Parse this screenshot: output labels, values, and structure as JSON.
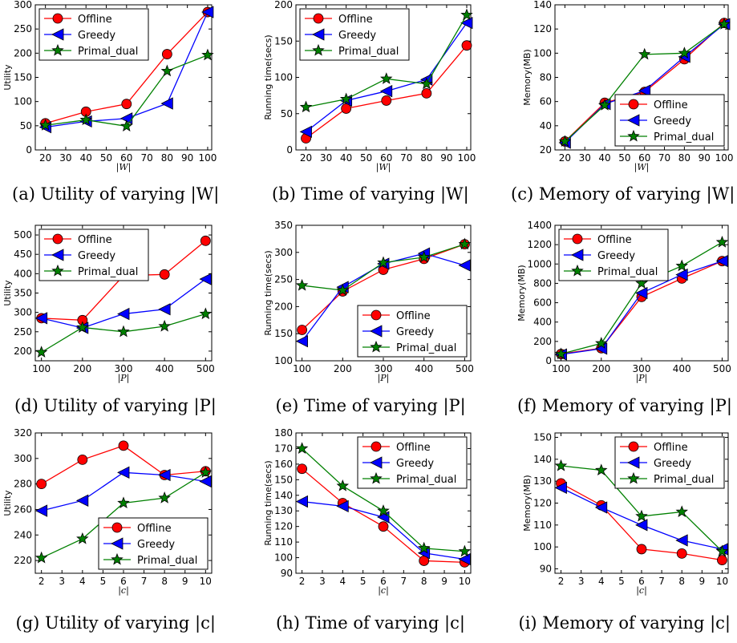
{
  "colors": {
    "offline": "#ff0000",
    "greedy": "#0000ff",
    "primal_dual": "#008000"
  },
  "chart_data": [
    {
      "type": "line",
      "caption": "(a) Utility of varying |W|",
      "xlabel": "|W|",
      "ylabel": "Utility",
      "xlim": [
        15,
        102
      ],
      "ylim": [
        0,
        300
      ],
      "xticks": [
        20,
        30,
        40,
        50,
        60,
        70,
        80,
        90,
        100
      ],
      "yticks": [
        0,
        50,
        100,
        150,
        200,
        250,
        300
      ],
      "legend": "top-left",
      "x": [
        20,
        40,
        60,
        80,
        100
      ],
      "series": [
        {
          "name": "Offline",
          "values": [
            55,
            79,
            95,
            198,
            285
          ]
        },
        {
          "name": "Greedy",
          "values": [
            47,
            59,
            65,
            96,
            285
          ]
        },
        {
          "name": "Primal_dual",
          "values": [
            51,
            62,
            49,
            163,
            196
          ]
        }
      ]
    },
    {
      "type": "line",
      "caption": "(b) Time of varying |W|",
      "xlabel": "|W|",
      "ylabel": "Running time(secs)",
      "xlim": [
        15,
        102
      ],
      "ylim": [
        0,
        200
      ],
      "xticks": [
        20,
        30,
        40,
        50,
        60,
        70,
        80,
        90,
        100
      ],
      "yticks": [
        0,
        50,
        100,
        150,
        200
      ],
      "legend": "top-left",
      "x": [
        20,
        40,
        60,
        80,
        100
      ],
      "series": [
        {
          "name": "Offline",
          "values": [
            16,
            57,
            68,
            78,
            144
          ]
        },
        {
          "name": "Greedy",
          "values": [
            25,
            68,
            81,
            97,
            175
          ]
        },
        {
          "name": "Primal_dual",
          "values": [
            59,
            70,
            98,
            91,
            186
          ]
        }
      ]
    },
    {
      "type": "line",
      "caption": "(c) Memory of varying |W|",
      "xlabel": "|W|",
      "ylabel": "Memory(MB)",
      "xlim": [
        15,
        102
      ],
      "ylim": [
        20,
        140
      ],
      "xticks": [
        20,
        30,
        40,
        50,
        60,
        70,
        80,
        90,
        100
      ],
      "yticks": [
        20,
        40,
        60,
        80,
        100,
        120,
        140
      ],
      "legend": "bottom-right",
      "x": [
        20,
        40,
        60,
        80,
        100
      ],
      "series": [
        {
          "name": "Offline",
          "values": [
            27,
            59,
            68,
            95,
            125
          ]
        },
        {
          "name": "Greedy",
          "values": [
            26,
            58,
            69,
            97,
            124
          ]
        },
        {
          "name": "Primal_dual",
          "values": [
            27,
            57,
            99,
            100,
            124
          ]
        }
      ]
    },
    {
      "type": "line",
      "caption": "(d) Utility of varying |P|",
      "xlabel": "|P|",
      "ylabel": "Utility",
      "xlim": [
        85,
        515
      ],
      "ylim": [
        175,
        525
      ],
      "xticks": [
        100,
        200,
        300,
        400,
        500
      ],
      "yticks": [
        200,
        250,
        300,
        350,
        400,
        450,
        500
      ],
      "legend": "top-left",
      "x": [
        100,
        200,
        300,
        400,
        500
      ],
      "series": [
        {
          "name": "Offline",
          "values": [
            285,
            280,
            395,
            398,
            485
          ]
        },
        {
          "name": "Greedy",
          "values": [
            285,
            260,
            296,
            308,
            386
          ]
        },
        {
          "name": "Primal_dual",
          "values": [
            197,
            261,
            250,
            264,
            296
          ]
        }
      ]
    },
    {
      "type": "line",
      "caption": "(e) Time of varying |P|",
      "xlabel": "|P|",
      "ylabel": "Running time(secs)",
      "xlim": [
        85,
        515
      ],
      "ylim": [
        100,
        350
      ],
      "xticks": [
        100,
        200,
        300,
        400,
        500
      ],
      "yticks": [
        100,
        150,
        200,
        250,
        300,
        350
      ],
      "legend": "bottom-right",
      "x": [
        100,
        200,
        300,
        400,
        500
      ],
      "series": [
        {
          "name": "Offline",
          "values": [
            157,
            228,
            268,
            288,
            315
          ]
        },
        {
          "name": "Greedy",
          "values": [
            136,
            236,
            279,
            298,
            276
          ]
        },
        {
          "name": "Primal_dual",
          "values": [
            239,
            230,
            281,
            291,
            315
          ]
        }
      ]
    },
    {
      "type": "line",
      "caption": "(f) Memory of varying |P|",
      "xlabel": "|P|",
      "ylabel": "Memory(MB)",
      "xlim": [
        85,
        515
      ],
      "ylim": [
        0,
        1400
      ],
      "xticks": [
        100,
        200,
        300,
        400,
        500
      ],
      "yticks": [
        0,
        200,
        400,
        600,
        800,
        1000,
        1200,
        1400
      ],
      "legend": "top-left",
      "x": [
        100,
        200,
        300,
        400,
        500
      ],
      "series": [
        {
          "name": "Offline",
          "values": [
            70,
            130,
            660,
            850,
            1030
          ]
        },
        {
          "name": "Greedy",
          "values": [
            65,
            125,
            700,
            890,
            1030
          ]
        },
        {
          "name": "Primal_dual",
          "values": [
            70,
            180,
            800,
            980,
            1225
          ]
        }
      ]
    },
    {
      "type": "line",
      "caption": "(g) Utility of varying |c|",
      "xlabel": "|c|",
      "ylabel": "Utility",
      "xlim": [
        1.7,
        10.3
      ],
      "ylim": [
        210,
        320
      ],
      "xticks": [
        2,
        3,
        4,
        5,
        6,
        7,
        8,
        9,
        10
      ],
      "yticks": [
        220,
        240,
        260,
        280,
        300,
        320
      ],
      "legend": "bottom-right",
      "x": [
        2,
        4,
        6,
        8,
        10
      ],
      "series": [
        {
          "name": "Offline",
          "values": [
            280,
            299,
            310,
            287,
            290
          ]
        },
        {
          "name": "Greedy",
          "values": [
            259,
            267,
            289,
            287,
            282
          ]
        },
        {
          "name": "Primal_dual",
          "values": [
            222,
            237,
            265,
            269,
            289
          ]
        }
      ]
    },
    {
      "type": "line",
      "caption": "(h) Time of varying |c|",
      "xlabel": "|c|",
      "ylabel": "Running time(secs)",
      "xlim": [
        1.7,
        10.3
      ],
      "ylim": [
        90,
        180
      ],
      "xticks": [
        2,
        3,
        4,
        5,
        6,
        7,
        8,
        9,
        10
      ],
      "yticks": [
        90,
        100,
        110,
        120,
        130,
        140,
        150,
        160,
        170,
        180
      ],
      "legend": "top-right",
      "x": [
        2,
        4,
        6,
        8,
        10
      ],
      "series": [
        {
          "name": "Offline",
          "values": [
            157,
            135,
            120,
            98,
            97
          ]
        },
        {
          "name": "Greedy",
          "values": [
            136,
            133,
            126,
            103,
            99
          ]
        },
        {
          "name": "Primal_dual",
          "values": [
            170,
            146,
            130,
            106,
            104
          ]
        }
      ]
    },
    {
      "type": "line",
      "caption": "(i) Memory of varying |c|",
      "xlabel": "|c|",
      "ylabel": "Memory(MB)",
      "xlim": [
        1.7,
        10.3
      ],
      "ylim": [
        88,
        152
      ],
      "xticks": [
        2,
        3,
        4,
        5,
        6,
        7,
        8,
        9,
        10
      ],
      "yticks": [
        90,
        100,
        110,
        120,
        130,
        140,
        150
      ],
      "legend": "top-right",
      "x": [
        2,
        4,
        6,
        8,
        10
      ],
      "series": [
        {
          "name": "Offline",
          "values": [
            129,
            119,
            99,
            97,
            94
          ]
        },
        {
          "name": "Greedy",
          "values": [
            127,
            118,
            110,
            103,
            99
          ]
        },
        {
          "name": "Primal_dual",
          "values": [
            137,
            135,
            114,
            116,
            98
          ]
        }
      ]
    }
  ]
}
